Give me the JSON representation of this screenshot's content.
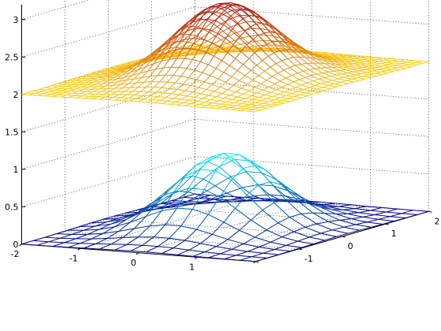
{
  "chart_data": {
    "type": "mesh3d",
    "title": "",
    "xlabel": "",
    "ylabel": "",
    "zlabel": "",
    "xlim": [
      -2,
      2
    ],
    "ylim": [
      -2,
      2
    ],
    "zlim": [
      0,
      3.2
    ],
    "x_ticks": [
      "-2",
      "-1",
      "0",
      "1"
    ],
    "y_ticks": [
      "-1",
      "0",
      "1",
      "2"
    ],
    "z_ticks": [
      "0",
      "0.5",
      "1",
      "1.5",
      "2",
      "2.5",
      "3"
    ],
    "grid": true,
    "surfaces": [
      {
        "function": "2 + exp(-(x^2 + y^2))",
        "z_offset": 2,
        "peak": 3,
        "grid_points": 31,
        "colormap": "autumn: #ffd21a (low) to #990000 (high)"
      },
      {
        "function": "exp(-(x^2 + y^2))",
        "z_offset": 0,
        "peak": 1,
        "grid_points": 16,
        "colormap": "winter: #00008f (low) to #00ffff (high)"
      }
    ]
  }
}
